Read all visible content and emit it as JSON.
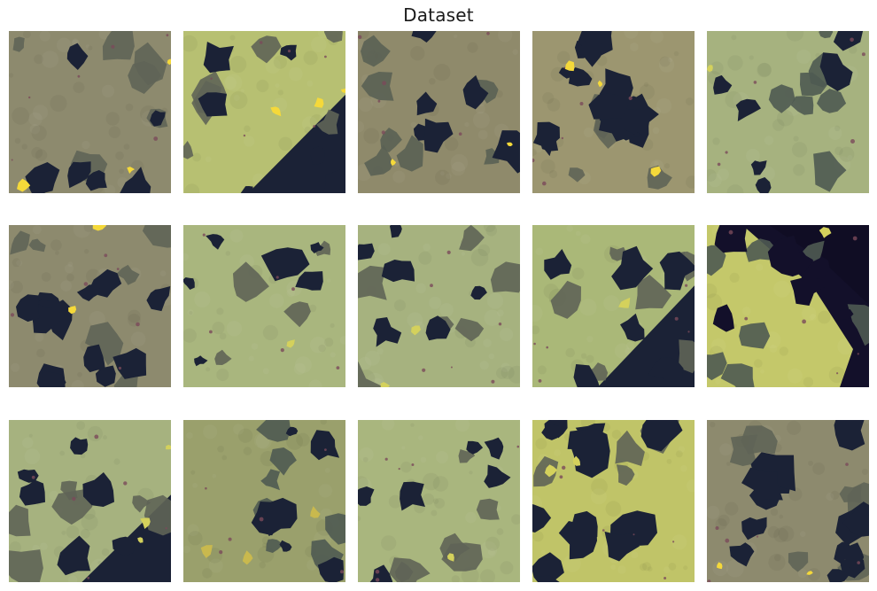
{
  "figure": {
    "title": "Dataset"
  },
  "palette": {
    "pore_dark": "#1b2236",
    "pore_deep": "#13102a",
    "grain_olive": "#8d8a6e",
    "grain_khaki": "#9c9670",
    "grain_green": "#a6b27f",
    "grain_bright": "#b7c072",
    "grain_yellow": "#d4d15c",
    "mineral_gray": "#5f6457",
    "mineral_slate": "#4f5a52",
    "speck_yellow": "#f5d93a",
    "speck_red": "#7a4a5a"
  },
  "panels": [
    {
      "name": "panel-1-1",
      "base": "#8d8a6e",
      "pore": "#1b2236",
      "mineral": "#5f6457",
      "accent": "#f5d93a",
      "style": "mixed"
    },
    {
      "name": "panel-1-2",
      "base": "#b7c072",
      "pore": "#1b2236",
      "mineral": "#5f6457",
      "accent": "#f5d93a",
      "style": "edge"
    },
    {
      "name": "panel-1-3",
      "base": "#8f8a6b",
      "pore": "#1b2236",
      "mineral": "#5a6054",
      "accent": "#f5d93a",
      "style": "mixed"
    },
    {
      "name": "panel-1-4",
      "base": "#9c9670",
      "pore": "#1b2236",
      "mineral": "#5f6457",
      "accent": "#f5d93a",
      "style": "channels"
    },
    {
      "name": "panel-1-5",
      "base": "#a6b27f",
      "pore": "#1b2236",
      "mineral": "#4f5a52",
      "accent": "#d4d15c",
      "style": "blobs"
    },
    {
      "name": "panel-2-1",
      "base": "#8d8a6e",
      "pore": "#1b2236",
      "mineral": "#5f6457",
      "accent": "#f5d93a",
      "style": "channels"
    },
    {
      "name": "panel-2-2",
      "base": "#a9b67e",
      "pore": "#1b2236",
      "mineral": "#5f6457",
      "accent": "#d4d15c",
      "style": "blobs"
    },
    {
      "name": "panel-2-3",
      "base": "#a6b27f",
      "pore": "#1b2236",
      "mineral": "#5f6457",
      "accent": "#d4d15c",
      "style": "mixed"
    },
    {
      "name": "panel-2-4",
      "base": "#aab878",
      "pore": "#1b2236",
      "mineral": "#5f6457",
      "accent": "#d4d15c",
      "style": "edge"
    },
    {
      "name": "panel-2-5",
      "base": "#c4c86a",
      "pore": "#13102a",
      "mineral": "#4f5a52",
      "accent": "#d4d15c",
      "style": "diag"
    },
    {
      "name": "panel-3-1",
      "base": "#a6b27f",
      "pore": "#1b2236",
      "mineral": "#5f6457",
      "accent": "#d4d15c",
      "style": "edge"
    },
    {
      "name": "panel-3-2",
      "base": "#9aa06c",
      "pore": "#1b2236",
      "mineral": "#4f5a52",
      "accent": "#c9b94e",
      "style": "mixed"
    },
    {
      "name": "panel-3-3",
      "base": "#a9b67e",
      "pore": "#1b2236",
      "mineral": "#5f6457",
      "accent": "#d4d15c",
      "style": "blobs"
    },
    {
      "name": "panel-3-4",
      "base": "#c0c468",
      "pore": "#1b2236",
      "mineral": "#5f6457",
      "accent": "#d4d15c",
      "style": "channels"
    },
    {
      "name": "panel-3-5",
      "base": "#8d8a6e",
      "pore": "#1b2236",
      "mineral": "#5f6457",
      "accent": "#f5d93a",
      "style": "channels"
    }
  ]
}
